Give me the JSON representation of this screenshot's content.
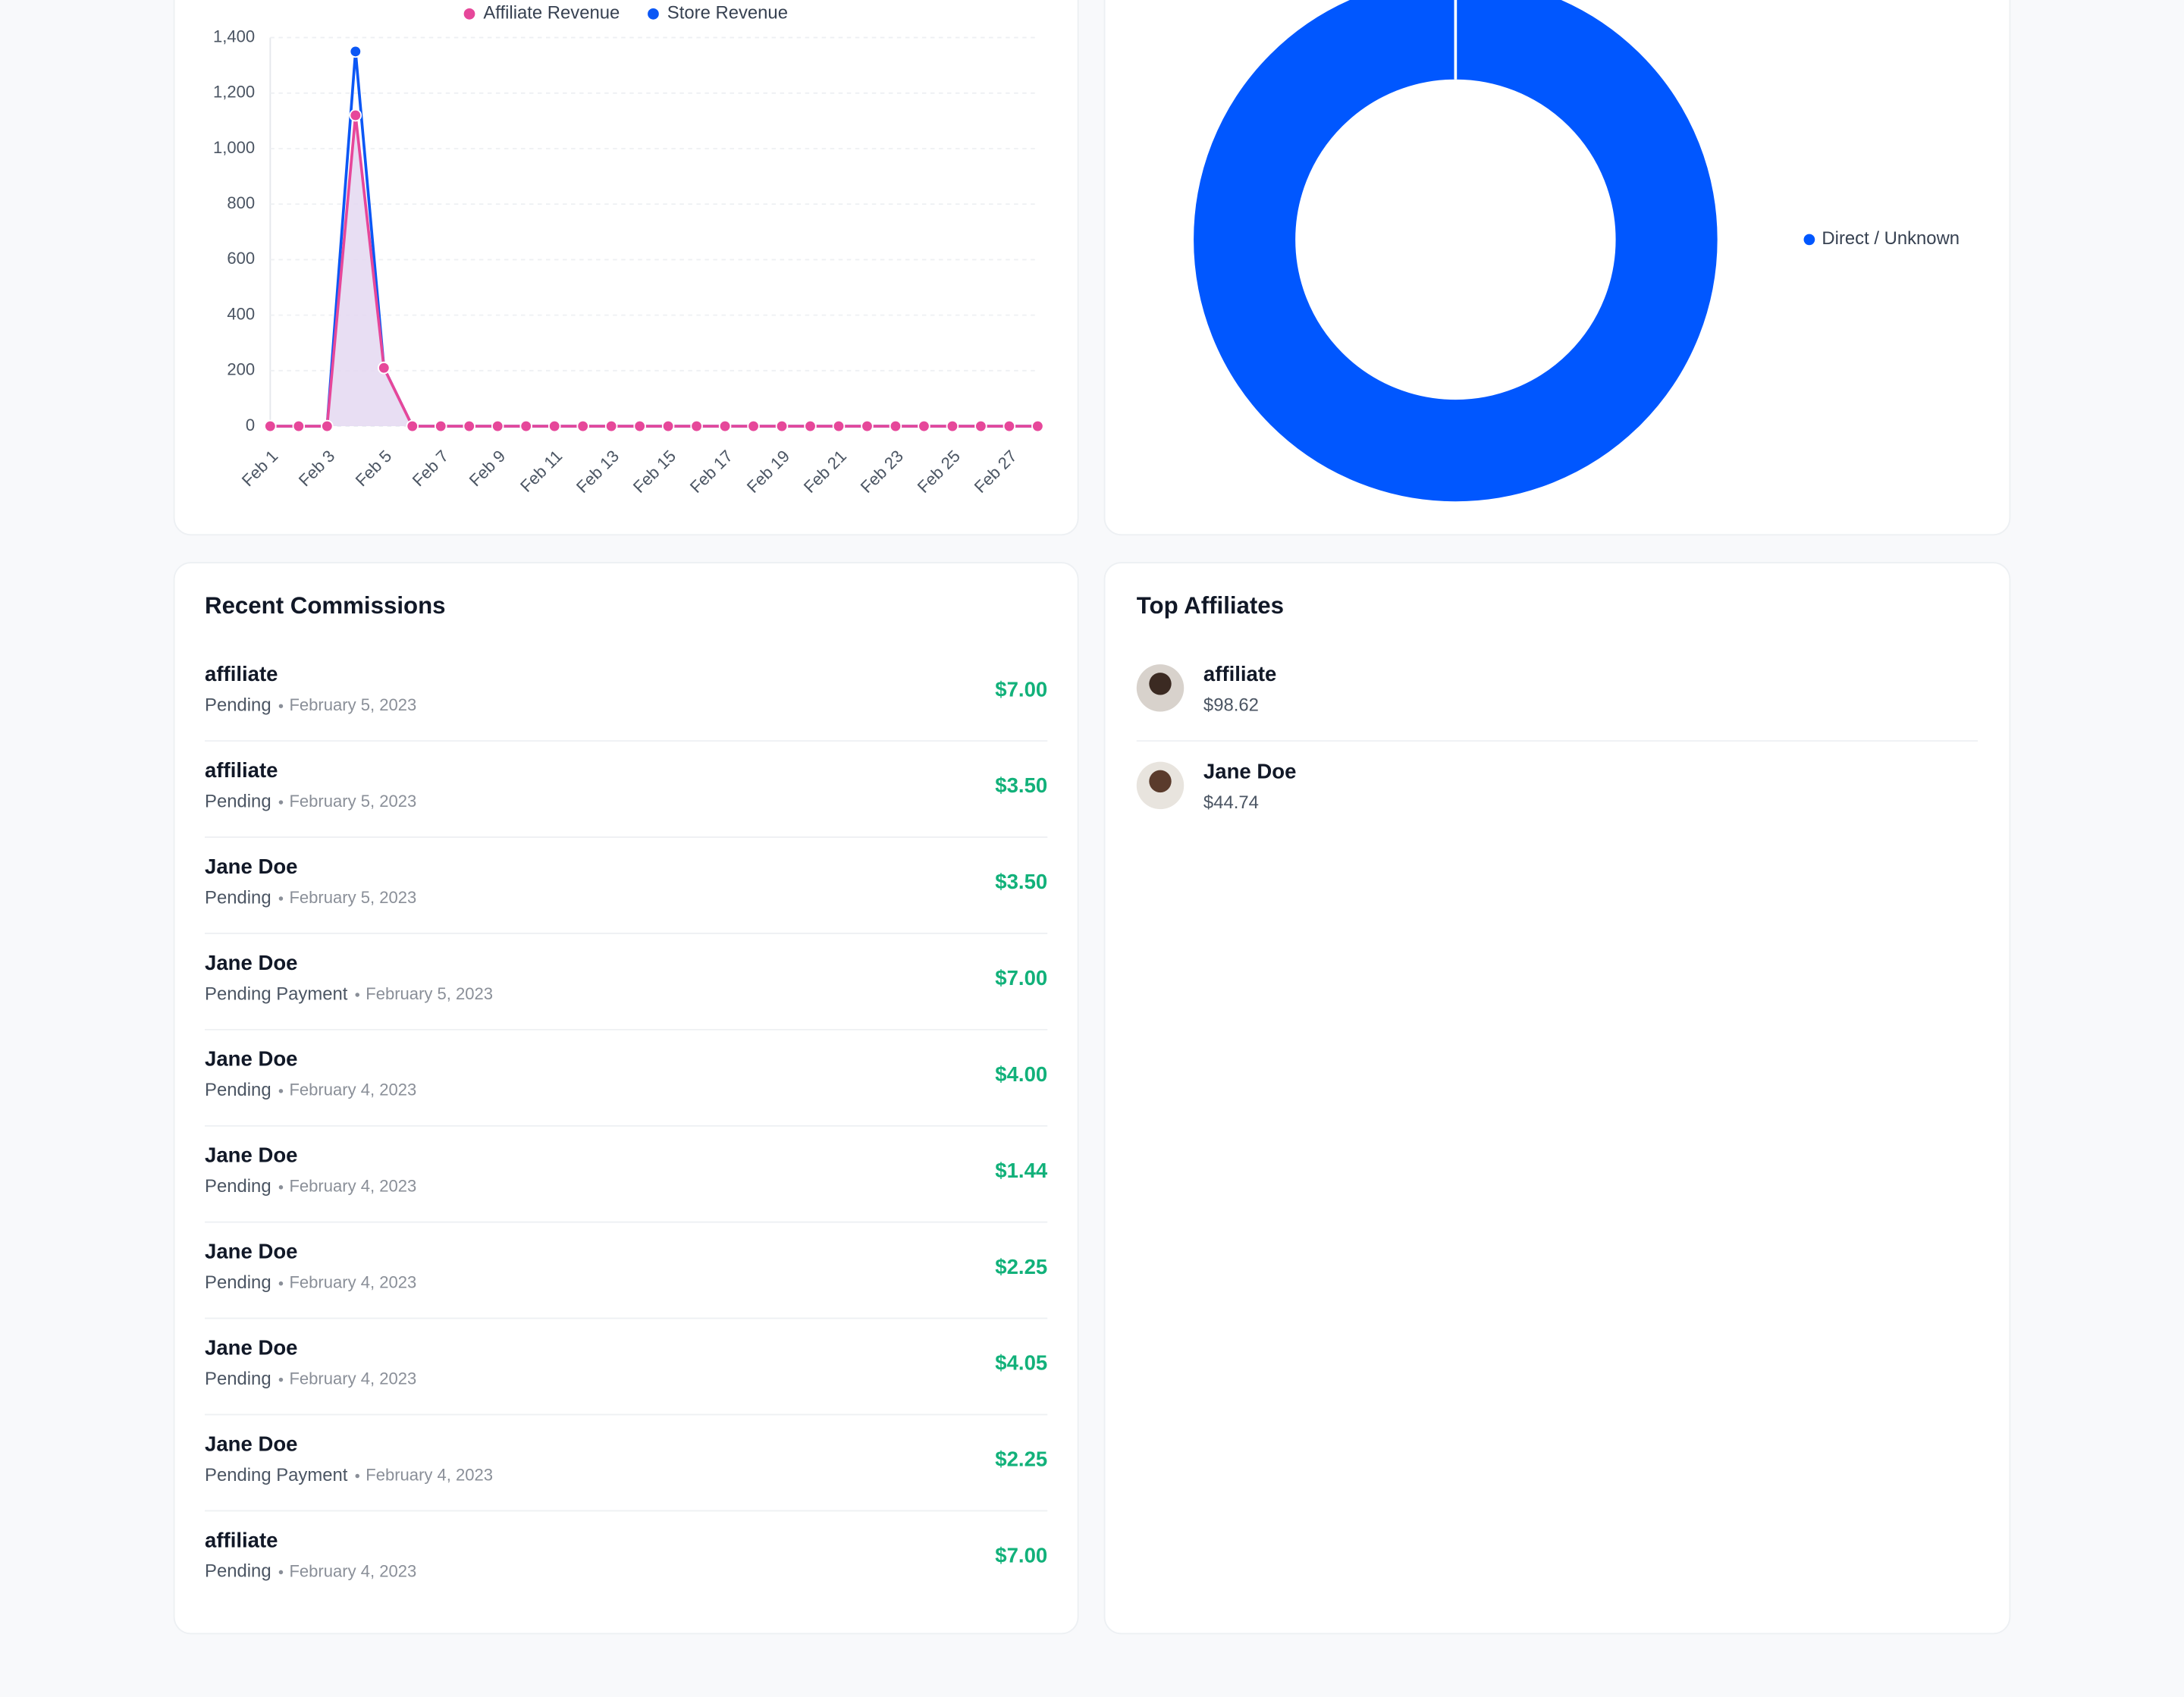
{
  "chart_data": [
    {
      "type": "line",
      "categories": [
        "Feb 1",
        null,
        "Feb 3",
        null,
        "Feb 5",
        null,
        "Feb 7",
        null,
        "Feb 9",
        null,
        "Feb 11",
        null,
        "Feb 13",
        null,
        "Feb 15",
        null,
        "Feb 17",
        null,
        "Feb 19",
        null,
        "Feb 21",
        null,
        "Feb 23",
        null,
        "Feb 25",
        null,
        "Feb 27",
        null
      ],
      "series": [
        {
          "name": "Store Revenue",
          "color": "#0b57f5",
          "values": [
            0,
            0,
            0,
            1350,
            210,
            0,
            0,
            0,
            0,
            0,
            0,
            0,
            0,
            0,
            0,
            0,
            0,
            0,
            0,
            0,
            0,
            0,
            0,
            0,
            0,
            0,
            0,
            0
          ]
        },
        {
          "name": "Affiliate Revenue",
          "color": "#e6479a",
          "values": [
            0,
            0,
            0,
            1120,
            210,
            0,
            0,
            0,
            0,
            0,
            0,
            0,
            0,
            0,
            0,
            0,
            0,
            0,
            0,
            0,
            0,
            0,
            0,
            0,
            0,
            0,
            0,
            0
          ]
        }
      ],
      "ylim": [
        0,
        1400
      ],
      "yticks": [
        0,
        200,
        400,
        600,
        800,
        {
          "value": 1000,
          "label": "1,000"
        },
        {
          "value": 1200,
          "label": "1,200"
        },
        {
          "value": 1400,
          "label": "1,400"
        }
      ],
      "grid": true
    },
    {
      "type": "pie",
      "categories": [
        "Direct / Unknown"
      ],
      "values": [
        100
      ],
      "colors": [
        "#0057ff"
      ]
    }
  ],
  "recent_commissions": {
    "title": "Recent Commissions",
    "rows": [
      {
        "name": "affiliate",
        "status": "Pending",
        "date": "February 5, 2023",
        "amount": "$7.00"
      },
      {
        "name": "affiliate",
        "status": "Pending",
        "date": "February 5, 2023",
        "amount": "$3.50"
      },
      {
        "name": "Jane Doe",
        "status": "Pending",
        "date": "February 5, 2023",
        "amount": "$3.50"
      },
      {
        "name": "Jane Doe",
        "status": "Pending Payment",
        "date": "February 5, 2023",
        "amount": "$7.00"
      },
      {
        "name": "Jane Doe",
        "status": "Pending",
        "date": "February 4, 2023",
        "amount": "$4.00"
      },
      {
        "name": "Jane Doe",
        "status": "Pending",
        "date": "February 4, 2023",
        "amount": "$1.44"
      },
      {
        "name": "Jane Doe",
        "status": "Pending",
        "date": "February 4, 2023",
        "amount": "$2.25"
      },
      {
        "name": "Jane Doe",
        "status": "Pending",
        "date": "February 4, 2023",
        "amount": "$4.05"
      },
      {
        "name": "Jane Doe",
        "status": "Pending Payment",
        "date": "February 4, 2023",
        "amount": "$2.25"
      },
      {
        "name": "affiliate",
        "status": "Pending",
        "date": "February 4, 2023",
        "amount": "$7.00"
      }
    ]
  },
  "top_affiliates": {
    "title": "Top Affiliates",
    "rows": [
      {
        "name": "affiliate",
        "earnings": "$98.62"
      },
      {
        "name": "Jane Doe",
        "earnings": "$44.74"
      }
    ]
  }
}
